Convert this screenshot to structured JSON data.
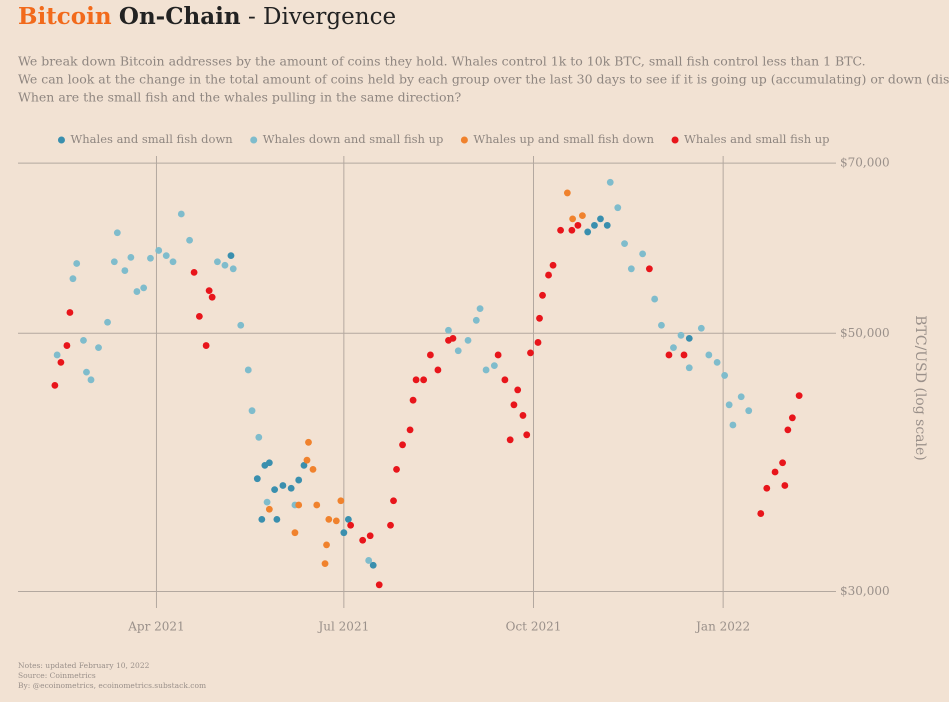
{
  "chart_data": {
    "type": "scatter",
    "title": {
      "brand": "Bitcoin",
      "main": "On-Chain",
      "rest": "- Divergence"
    },
    "subtitle": [
      "We break down Bitcoin addresses by the amount of coins they hold. Whales control 1k to 10k BTC, small fish control less than 1 BTC.",
      "We can look at the change in the total amount of coins held by each group over the last 30 days to see if it is going up (accumulating) or down (distributing).",
      "When are the small fish and the whales pulling in the same direction?"
    ],
    "notes": [
      "Notes: updated February 10, 2022",
      "Source: Coinmetrics",
      "By: @ecoinometrics, ecoinometrics.substack.com"
    ],
    "y_label": "BTC/USD (log scale)",
    "log_y": true,
    "grid": true,
    "legend": "top",
    "xlim": [
      2021.063,
      2022.142
    ],
    "xticks": [
      {
        "value": 2021.247,
        "label": "Apr 2021"
      },
      {
        "value": 2021.496,
        "label": "Jul 2021"
      },
      {
        "value": 2021.748,
        "label": "Oct 2021"
      },
      {
        "value": 2022.0,
        "label": "Jan 2022"
      }
    ],
    "ylim": [
      29500,
      71000
    ],
    "yticks": [
      {
        "value": 30000,
        "label": "$30,000"
      },
      {
        "value": 50000,
        "label": "$50,000"
      },
      {
        "value": 70000,
        "label": "$70,000"
      }
    ],
    "series": [
      {
        "name": "Whales and small fish down",
        "color": "#3a8fae",
        "x": [
          2021.381,
          2021.391,
          2021.397,
          2021.404,
          2021.415,
          2021.426,
          2021.436,
          2021.443,
          2021.387,
          2021.407,
          2021.346,
          2021.496,
          2021.502,
          2021.535,
          2021.82,
          2021.829,
          2021.837,
          2021.846,
          2021.955
        ],
        "values": [
          37500,
          38500,
          38700,
          36700,
          37000,
          36800,
          37400,
          38500,
          34600,
          34600,
          58300,
          33700,
          34600,
          31600,
          61100,
          61900,
          62700,
          61900,
          49500
        ]
      },
      {
        "name": "Whales down and small fish up",
        "color": "#7fbccc",
        "x": [
          2021.115,
          2021.136,
          2021.141,
          2021.15,
          2021.154,
          2021.16,
          2021.17,
          2021.182,
          2021.191,
          2021.195,
          2021.205,
          2021.213,
          2021.221,
          2021.23,
          2021.239,
          2021.25,
          2021.26,
          2021.269,
          2021.28,
          2021.291,
          2021.328,
          2021.338,
          2021.349,
          2021.359,
          2021.369,
          2021.374,
          2021.383,
          2021.394,
          2021.431,
          2021.529,
          2021.635,
          2021.648,
          2021.661,
          2021.672,
          2021.677,
          2021.685,
          2021.696,
          2021.85,
          2021.86,
          2021.869,
          2021.878,
          2021.893,
          2021.909,
          2021.918,
          2021.934,
          2021.944,
          2021.955,
          2021.971,
          2021.981,
          2021.992,
          2022.002,
          2022.008,
          2022.013,
          2022.024,
          2022.034
        ],
        "values": [
          47900,
          55700,
          57400,
          49300,
          46300,
          45600,
          48600,
          51100,
          57600,
          61000,
          56600,
          58100,
          54300,
          54700,
          58000,
          58900,
          58300,
          57600,
          63300,
          60100,
          57600,
          57200,
          56800,
          50800,
          46500,
          42900,
          40700,
          35800,
          35600,
          31900,
          50300,
          48300,
          49300,
          51300,
          52500,
          46500,
          46900,
          67400,
          64100,
          59700,
          56800,
          58500,
          53500,
          50800,
          48600,
          49800,
          46700,
          50500,
          47900,
          47200,
          46000,
          43400,
          41700,
          44100,
          42900
        ]
      },
      {
        "name": "Whales up and small fish down",
        "color": "#f0822d",
        "x": [
          2021.397,
          2021.431,
          2021.436,
          2021.447,
          2021.449,
          2021.455,
          2021.46,
          2021.471,
          2021.476,
          2021.486,
          2021.492,
          2021.473,
          2021.793,
          2021.8,
          2021.813
        ],
        "values": [
          35300,
          33700,
          35600,
          38900,
          40300,
          38200,
          35600,
          31700,
          34600,
          34500,
          35900,
          32900,
          66000,
          62700,
          63100
        ]
      },
      {
        "name": "Whales and small fish up",
        "color": "#e8151b",
        "x": [
          2021.112,
          2021.12,
          2021.128,
          2021.132,
          2021.297,
          2021.304,
          2021.313,
          2021.317,
          2021.321,
          2021.505,
          2021.521,
          2021.531,
          2021.543,
          2021.558,
          2021.562,
          2021.566,
          2021.574,
          2021.584,
          2021.588,
          2021.592,
          2021.602,
          2021.611,
          2021.621,
          2021.635,
          2021.641,
          2021.701,
          2021.71,
          2021.717,
          2021.722,
          2021.727,
          2021.734,
          2021.739,
          2021.744,
          2021.754,
          2021.756,
          2021.76,
          2021.768,
          2021.774,
          2021.784,
          2021.799,
          2021.807,
          2021.902,
          2021.928,
          2021.948,
          2022.05,
          2022.058,
          2022.069,
          2022.079,
          2022.082,
          2022.086,
          2022.092,
          2022.101
        ],
        "values": [
          45100,
          47200,
          48800,
          52100,
          56400,
          51700,
          48800,
          54400,
          53700,
          34200,
          33200,
          33500,
          30400,
          34200,
          35900,
          38200,
          40100,
          41300,
          43800,
          45600,
          45600,
          47900,
          46500,
          49300,
          49500,
          47900,
          45600,
          40500,
          43400,
          44700,
          42500,
          40900,
          48100,
          49100,
          51500,
          53900,
          56100,
          57200,
          61300,
          61300,
          61900,
          56800,
          47900,
          47900,
          35000,
          36800,
          38000,
          38700,
          37000,
          41300,
          42300,
          44200
        ]
      }
    ]
  }
}
